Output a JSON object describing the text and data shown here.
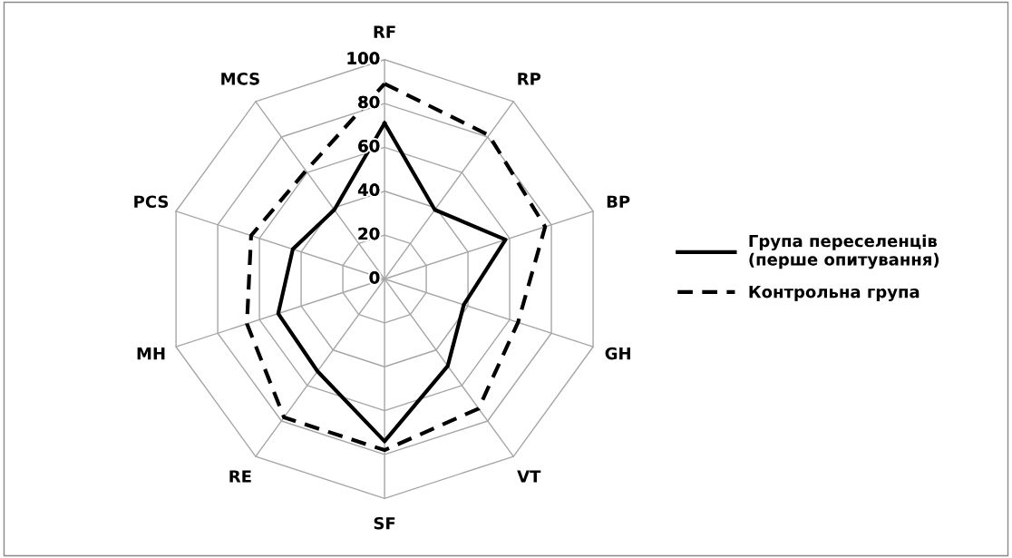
{
  "chart_data": {
    "type": "radar",
    "categories": [
      "RF",
      "RP",
      "BP",
      "GH",
      "VT",
      "SF",
      "RE",
      "MH",
      "PCS",
      "MCS"
    ],
    "ylim": [
      0,
      100
    ],
    "yticks": [
      0,
      20,
      40,
      60,
      80,
      100
    ],
    "grid": true,
    "legend": "right",
    "series": [
      {
        "name": "Група переселенців\n(перше опитування)",
        "color": "#000000",
        "line_style": "solid",
        "values": [
          71,
          39,
          58,
          38,
          49,
          74,
          52,
          51,
          44,
          39
        ]
      },
      {
        "name": "Контрольна група",
        "color": "#000000",
        "line_style": "dashed",
        "values": [
          89,
          81,
          77,
          64,
          73,
          78,
          78,
          66,
          64,
          61
        ]
      }
    ]
  }
}
